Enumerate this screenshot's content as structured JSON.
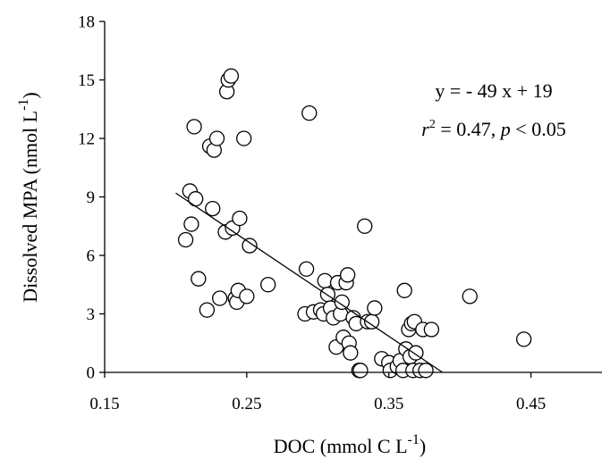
{
  "chart_data": {
    "type": "scatter",
    "title": "",
    "xlabel": "DOC (mmol C L",
    "xlabel_sup": "-1",
    "xlabel_end": ")",
    "ylabel": "Dissolved MPA (nmol L",
    "ylabel_sup": "-1",
    "ylabel_end": ")",
    "xlim": [
      0.15,
      0.5
    ],
    "ylim": [
      0,
      18
    ],
    "xticks": [
      0.15,
      0.25,
      0.35,
      0.45
    ],
    "xtick_labels": [
      "0.15",
      "0.25",
      "0.35",
      "0.45"
    ],
    "yticks": [
      0,
      3,
      6,
      9,
      12,
      15,
      18
    ],
    "ytick_labels": [
      "0",
      "3",
      "6",
      "9",
      "12",
      "15",
      "18"
    ],
    "grid": false,
    "annotation": {
      "equation": "y = - 49 x + 19",
      "r_label": "r",
      "r_sup": "2",
      "r_rest": " = 0.47, ",
      "p_label": "p",
      "p_rest": " < 0.05"
    },
    "regression": {
      "slope": -49,
      "intercept": 19,
      "x_range": [
        0.2,
        0.39
      ]
    },
    "series": [
      {
        "points": [
          [
            0.207,
            6.8
          ],
          [
            0.21,
            9.3
          ],
          [
            0.211,
            7.6
          ],
          [
            0.213,
            12.6
          ],
          [
            0.214,
            8.9
          ],
          [
            0.216,
            4.8
          ],
          [
            0.222,
            3.2
          ],
          [
            0.224,
            11.6
          ],
          [
            0.226,
            8.4
          ],
          [
            0.227,
            11.4
          ],
          [
            0.229,
            12.0
          ],
          [
            0.231,
            3.8
          ],
          [
            0.235,
            7.2
          ],
          [
            0.236,
            14.4
          ],
          [
            0.237,
            15.0
          ],
          [
            0.239,
            15.2
          ],
          [
            0.24,
            7.4
          ],
          [
            0.242,
            3.8
          ],
          [
            0.243,
            3.6
          ],
          [
            0.244,
            4.2
          ],
          [
            0.245,
            7.9
          ],
          [
            0.248,
            12.0
          ],
          [
            0.25,
            3.9
          ],
          [
            0.252,
            6.5
          ],
          [
            0.265,
            4.5
          ],
          [
            0.291,
            3.0
          ],
          [
            0.292,
            5.3
          ],
          [
            0.294,
            13.3
          ],
          [
            0.297,
            3.1
          ],
          [
            0.302,
            3.2
          ],
          [
            0.304,
            3.0
          ],
          [
            0.305,
            4.7
          ],
          [
            0.307,
            4.0
          ],
          [
            0.309,
            3.3
          ],
          [
            0.311,
            2.8
          ],
          [
            0.313,
            1.3
          ],
          [
            0.314,
            4.6
          ],
          [
            0.316,
            3.0
          ],
          [
            0.317,
            3.6
          ],
          [
            0.318,
            1.8
          ],
          [
            0.32,
            4.6
          ],
          [
            0.321,
            5.0
          ],
          [
            0.322,
            1.5
          ],
          [
            0.323,
            1.0
          ],
          [
            0.325,
            2.8
          ],
          [
            0.327,
            2.5
          ],
          [
            0.329,
            0.1
          ],
          [
            0.33,
            0.1
          ],
          [
            0.333,
            7.5
          ],
          [
            0.335,
            2.6
          ],
          [
            0.338,
            2.6
          ],
          [
            0.34,
            3.3
          ],
          [
            0.345,
            0.7
          ],
          [
            0.35,
            0.5
          ],
          [
            0.351,
            0.1
          ],
          [
            0.356,
            0.3
          ],
          [
            0.358,
            0.6
          ],
          [
            0.36,
            0.1
          ],
          [
            0.361,
            4.2
          ],
          [
            0.362,
            1.2
          ],
          [
            0.364,
            2.2
          ],
          [
            0.365,
            0.8
          ],
          [
            0.366,
            2.5
          ],
          [
            0.367,
            0.1
          ],
          [
            0.368,
            2.6
          ],
          [
            0.369,
            1.0
          ],
          [
            0.372,
            0.1
          ],
          [
            0.374,
            2.2
          ],
          [
            0.376,
            0.1
          ],
          [
            0.38,
            2.2
          ],
          [
            0.407,
            3.9
          ],
          [
            0.445,
            1.7
          ]
        ]
      }
    ]
  }
}
